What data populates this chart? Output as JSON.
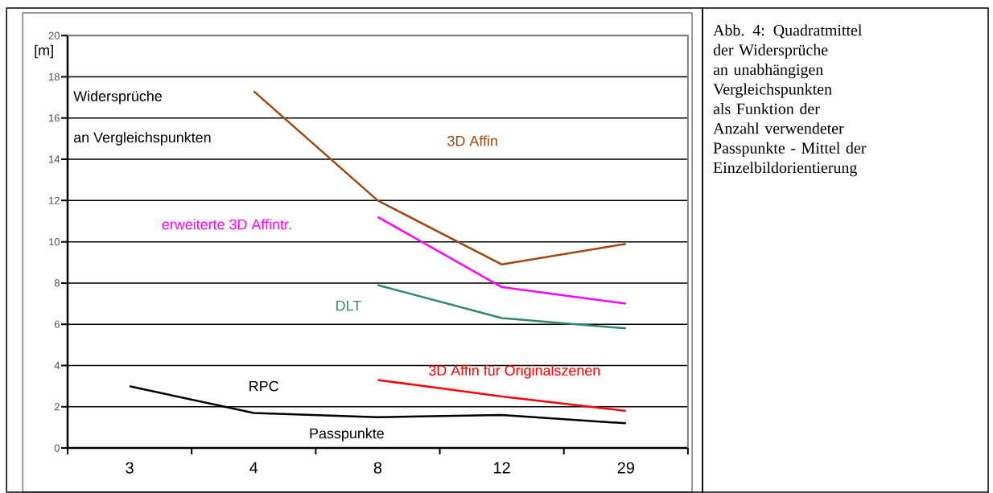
{
  "chart_data": {
    "type": "line",
    "title": "Abb. 4: Quadratmittel der Widersprüche an unabhängigen Vergleichspunkten als Funktion der Anzahl verwendeter Passpunkte - Mittel der Einzelbildorientierung",
    "xlabel": "Passpunkte",
    "ylabel": "[m]",
    "annotations": [
      "Widersprüche",
      "an Vergleichspunkten"
    ],
    "categories": [
      "3",
      "4",
      "8",
      "12",
      "29"
    ],
    "ylim": [
      0,
      20
    ],
    "yticks": [
      0,
      2,
      4,
      6,
      8,
      10,
      12,
      14,
      16,
      18,
      20
    ],
    "grid": "y",
    "marker": "none",
    "line_style": "solid",
    "series": [
      {
        "name": "3D Affin",
        "color": "#a0460f",
        "values": [
          null,
          17.3,
          12.0,
          8.9,
          9.9
        ]
      },
      {
        "name": "erweiterte 3D Affintr.",
        "color": "#ff00ff",
        "values": [
          null,
          null,
          11.2,
          7.8,
          7.0
        ]
      },
      {
        "name": "DLT",
        "color": "#2e8b62",
        "values": [
          null,
          null,
          7.9,
          6.3,
          5.8
        ]
      },
      {
        "name": "3D Affin für Originalszenen",
        "color": "#ff0000",
        "values": [
          null,
          null,
          3.3,
          2.5,
          1.8
        ]
      },
      {
        "name": "RPC",
        "color": "#000000",
        "values": [
          3.0,
          1.7,
          1.5,
          1.6,
          1.2
        ]
      }
    ]
  }
}
